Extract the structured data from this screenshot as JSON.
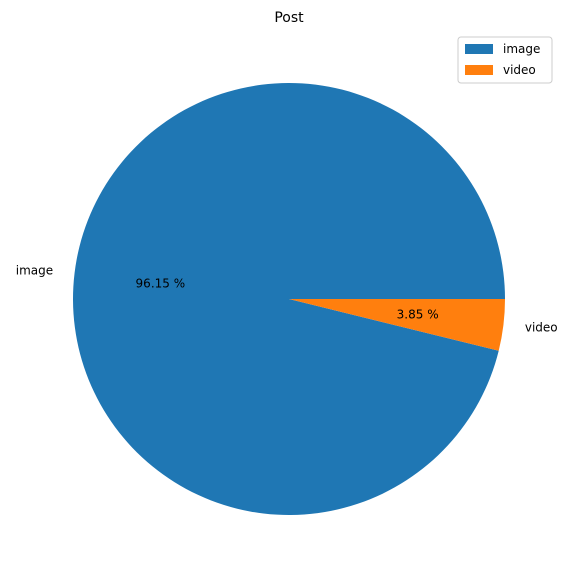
{
  "chart_data": {
    "type": "pie",
    "title": "Post",
    "slices": [
      {
        "label": "image",
        "value": 96.15,
        "pct_label": "96.15 %",
        "color": "#1f77b4"
      },
      {
        "label": "video",
        "value": 3.85,
        "pct_label": "3.85 %",
        "color": "#ff7f0e"
      }
    ],
    "legend": {
      "placement": "top-right",
      "entries": [
        {
          "label": "image",
          "color": "#1f77b4"
        },
        {
          "label": "video",
          "color": "#ff7f0e"
        }
      ]
    }
  }
}
